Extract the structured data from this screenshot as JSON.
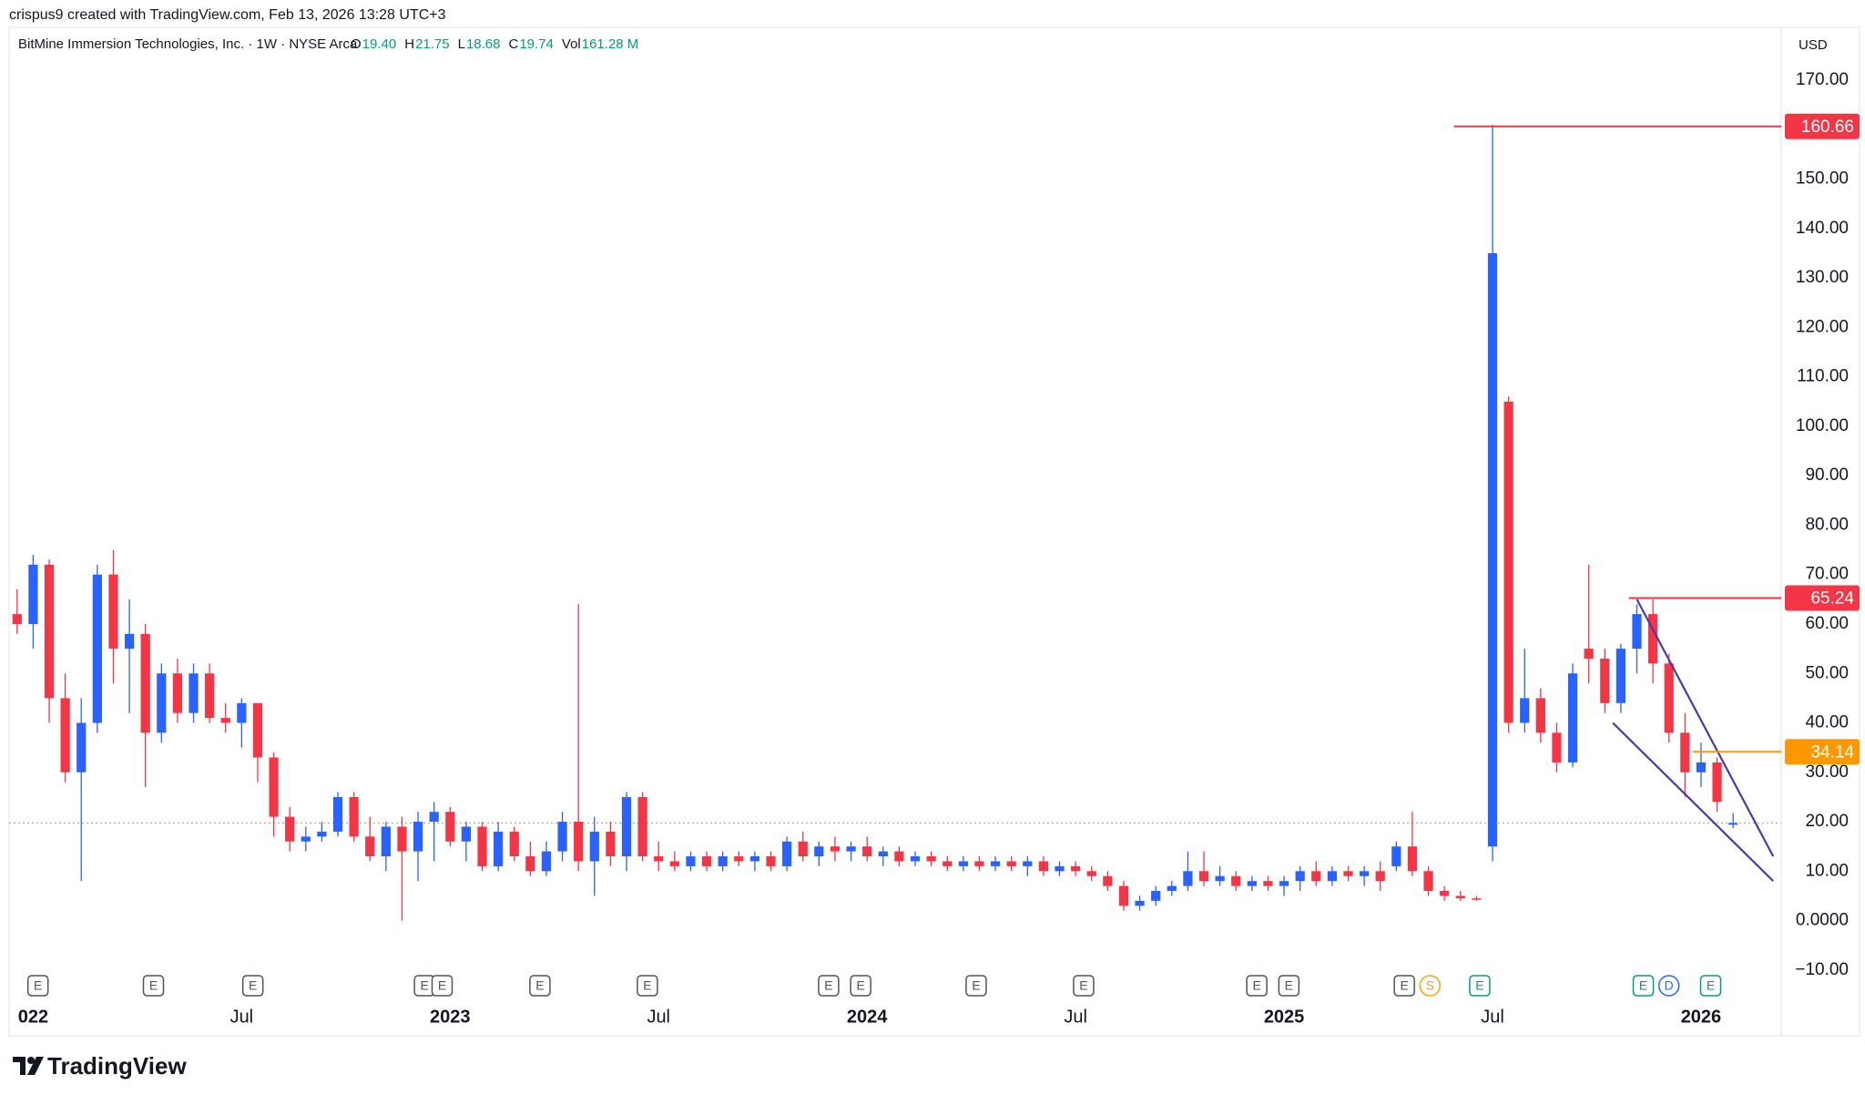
{
  "header": {
    "attribution": "crispus9 created with TradingView.com, Feb 13, 2026 13:28 UTC+3",
    "symbol": "BitMine Immersion Technologies, Inc. · 1W · NYSE Arca",
    "ohlc": [
      {
        "key": "O",
        "value": "19.40"
      },
      {
        "key": "H",
        "value": "21.75"
      },
      {
        "key": "L",
        "value": "18.68"
      },
      {
        "key": "C",
        "value": "19.74"
      },
      {
        "key": "Vol",
        "value": "161.28 M"
      }
    ],
    "currency": "USD"
  },
  "chart_data": {
    "type": "candlestick",
    "up_color": "#2962ff",
    "down_color": "#f23645",
    "open": [
      62,
      60,
      72,
      45,
      30,
      40,
      70,
      55,
      58,
      38,
      50,
      42,
      50,
      41,
      40,
      44,
      33,
      21,
      16,
      17,
      18,
      25,
      17,
      13,
      19,
      14,
      20,
      22,
      16,
      19,
      11,
      18,
      13,
      10,
      14,
      20,
      12,
      18,
      13,
      25,
      13,
      12,
      11,
      13,
      11,
      13,
      12,
      13,
      11,
      16,
      13,
      15,
      14,
      15,
      13,
      14,
      12,
      13,
      12,
      11,
      12,
      11,
      12,
      11,
      12,
      10,
      11,
      10,
      9,
      7,
      3,
      4,
      6,
      7,
      10,
      8,
      9,
      7,
      8,
      7,
      8,
      10,
      8,
      10,
      9,
      10,
      11,
      15,
      10,
      6,
      5,
      4.5,
      15,
      105,
      40,
      45,
      38,
      32,
      55,
      53,
      44,
      55,
      62,
      52,
      38,
      30,
      32,
      19.4
    ],
    "high": [
      67,
      74,
      73,
      50,
      45,
      72,
      75,
      65,
      60,
      52,
      53,
      52,
      52,
      44,
      45,
      44,
      34,
      23,
      19,
      20,
      26,
      26,
      21,
      20,
      21,
      22,
      24,
      23,
      20,
      20,
      20,
      19,
      16,
      16,
      22,
      64,
      21,
      20,
      26,
      26,
      16,
      14,
      14,
      14,
      14,
      14,
      14,
      14,
      17,
      18,
      16,
      17,
      16,
      17,
      15,
      15,
      14,
      14,
      13,
      13,
      13,
      13,
      13,
      13,
      13,
      12,
      12,
      11,
      10,
      8,
      5,
      7,
      8,
      14,
      14,
      11,
      10,
      9,
      9,
      9,
      11,
      12,
      11,
      11,
      11,
      12,
      16,
      22,
      11,
      7,
      6,
      5,
      161,
      106,
      55,
      47,
      40,
      52,
      72,
      55,
      56,
      64,
      65,
      54,
      42,
      36,
      33,
      21.75
    ],
    "low": [
      58,
      55,
      40,
      28,
      8,
      38,
      48,
      42,
      27,
      36,
      40,
      40,
      40,
      38,
      35,
      28,
      17,
      14,
      14,
      16,
      17,
      16,
      12,
      10,
      0,
      8,
      12,
      15,
      12,
      10,
      10,
      12,
      9,
      9,
      12,
      10,
      5,
      11,
      10,
      12,
      10,
      10,
      10,
      10,
      10,
      11,
      10,
      10,
      10,
      12,
      11,
      12,
      12,
      12,
      11,
      11,
      11,
      11,
      10,
      10,
      10,
      10,
      10,
      9,
      9,
      9,
      9,
      8,
      6,
      2,
      2,
      3,
      5,
      6,
      7,
      7,
      6,
      6,
      6,
      5,
      6,
      7,
      7,
      8,
      7,
      6,
      10,
      9,
      5,
      4,
      4,
      4,
      12,
      38,
      38,
      36,
      30,
      31,
      48,
      42,
      42,
      50,
      48,
      36,
      25,
      27,
      22,
      18.68
    ],
    "close": [
      60,
      72,
      45,
      30,
      40,
      70,
      55,
      58,
      38,
      50,
      42,
      50,
      41,
      40,
      44,
      33,
      21,
      16,
      17,
      18,
      25,
      17,
      13,
      19,
      14,
      20,
      22,
      16,
      19,
      11,
      18,
      13,
      10,
      14,
      20,
      12,
      18,
      13,
      25,
      13,
      12,
      11,
      13,
      11,
      13,
      12,
      13,
      11,
      16,
      13,
      15,
      14,
      15,
      13,
      14,
      12,
      13,
      12,
      11,
      12,
      11,
      12,
      11,
      12,
      10,
      11,
      10,
      9,
      7,
      3,
      4,
      6,
      7,
      10,
      8,
      9,
      7,
      8,
      7,
      8,
      10,
      8,
      10,
      9,
      10,
      8,
      15,
      10,
      6,
      5,
      4.5,
      4.3,
      135,
      40,
      45,
      38,
      32,
      50,
      53,
      44,
      55,
      62,
      52,
      38,
      30,
      32,
      24,
      19.74
    ],
    "xlim": [
      -0.5,
      110
    ],
    "xticks": [
      {
        "value": 1,
        "label": "022"
      },
      {
        "value": 14,
        "label": "Jul"
      },
      {
        "value": 27,
        "label": "2023"
      },
      {
        "value": 40,
        "label": "Jul"
      },
      {
        "value": 53,
        "label": "2024"
      },
      {
        "value": 66,
        "label": "Jul"
      },
      {
        "value": 79,
        "label": "2025"
      },
      {
        "value": 92,
        "label": "Jul"
      },
      {
        "value": 105,
        "label": "2026"
      }
    ],
    "ylim": [
      -23.3,
      180.7
    ],
    "yticks": [
      {
        "value": -10,
        "label": "−10.00"
      },
      {
        "value": 0,
        "label": "0.0000"
      },
      {
        "value": 10,
        "label": "10.00"
      },
      {
        "value": 20,
        "label": "20.00"
      },
      {
        "value": 30,
        "label": "30.00"
      },
      {
        "value": 40,
        "label": "40.00"
      },
      {
        "value": 50,
        "label": "50.00"
      },
      {
        "value": 60,
        "label": "60.00"
      },
      {
        "value": 70,
        "label": "70.00"
      },
      {
        "value": 80,
        "label": "80.00"
      },
      {
        "value": 90,
        "label": "90.00"
      },
      {
        "value": 100,
        "label": "100.00"
      },
      {
        "value": 110,
        "label": "110.00"
      },
      {
        "value": 120,
        "label": "120.00"
      },
      {
        "value": 130,
        "label": "130.00"
      },
      {
        "value": 140,
        "label": "140.00"
      },
      {
        "value": 150,
        "label": "150.00"
      },
      {
        "value": 160,
        "label": "160.00"
      },
      {
        "value": 170,
        "label": "170.00"
      }
    ],
    "last_price_line": true,
    "price_lines": [
      {
        "value": 160.66,
        "color": "#f23645",
        "start": 89.6
      },
      {
        "value": 65.24,
        "color": "#f23645",
        "start": 100.5
      },
      {
        "value": 34.14,
        "color": "#ff9800",
        "start": 104.5
      }
    ],
    "trendlines": [
      {
        "color": "#4a3aa8",
        "x": [
          101,
          109.5
        ],
        "y": [
          65,
          13
        ]
      },
      {
        "color": "#4a3aa8",
        "x": [
          99.5,
          109.5
        ],
        "y": [
          40,
          8
        ]
      }
    ],
    "events": [
      {
        "x": 1.3,
        "label": "E",
        "color": "#50535e"
      },
      {
        "x": 8.5,
        "label": "E",
        "color": "#50535e"
      },
      {
        "x": 14.7,
        "label": "E",
        "color": "#50535e"
      },
      {
        "x": 25.4,
        "label": "E",
        "color": "#50535e"
      },
      {
        "x": 26.5,
        "label": "E",
        "color": "#50535e"
      },
      {
        "x": 32.6,
        "label": "E",
        "color": "#50535e"
      },
      {
        "x": 39.3,
        "label": "E",
        "color": "#50535e"
      },
      {
        "x": 50.6,
        "label": "E",
        "color": "#50535e"
      },
      {
        "x": 52.6,
        "label": "E",
        "color": "#50535e"
      },
      {
        "x": 59.8,
        "label": "E",
        "color": "#50535e"
      },
      {
        "x": 66.5,
        "label": "E",
        "color": "#50535e"
      },
      {
        "x": 77.3,
        "label": "E",
        "color": "#50535e"
      },
      {
        "x": 79.3,
        "label": "E",
        "color": "#50535e"
      },
      {
        "x": 86.5,
        "label": "E",
        "color": "#50535e"
      },
      {
        "x": 88.1,
        "label": "S",
        "color": "#f7a600"
      },
      {
        "x": 91.2,
        "label": "E",
        "color": "#089981"
      },
      {
        "x": 101.4,
        "label": "E",
        "color": "#089981"
      },
      {
        "x": 103,
        "label": "D",
        "color": "#2962ff"
      },
      {
        "x": 105.6,
        "label": "E",
        "color": "#089981"
      }
    ]
  },
  "footer": {
    "brand": "TradingView"
  }
}
